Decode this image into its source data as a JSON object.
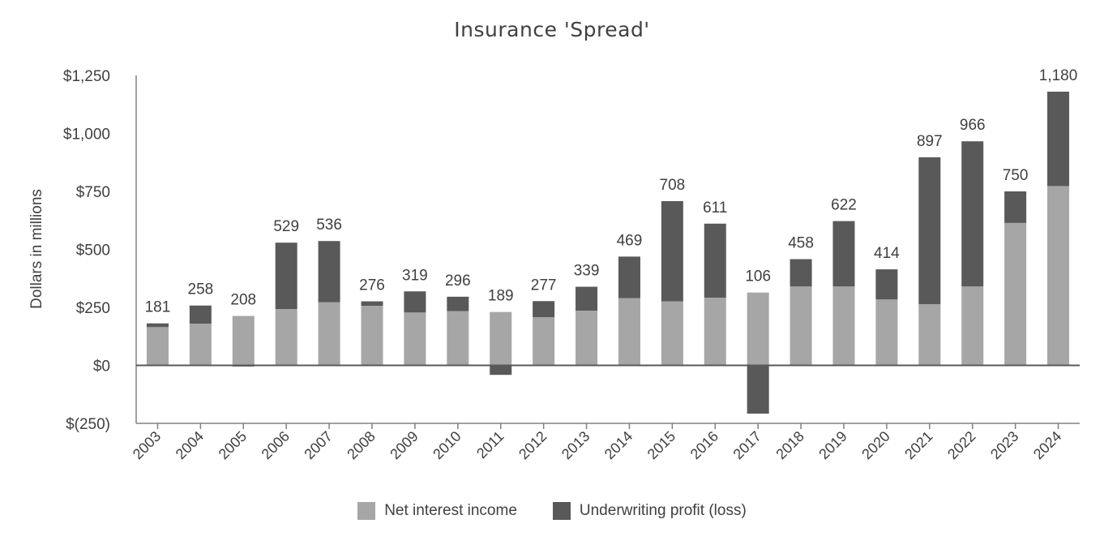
{
  "chart_data": {
    "type": "bar",
    "stacked": true,
    "title": "Insurance 'Spread'",
    "xlabel": "",
    "ylabel": "Dollars in millions",
    "ylim": [
      -250,
      1250
    ],
    "yticks": [
      -250,
      0,
      250,
      500,
      750,
      1000,
      1250
    ],
    "ytick_labels": [
      "$(250)",
      "$0",
      "$250",
      "$500",
      "$750",
      "$1,000",
      "$1,250"
    ],
    "grid": false,
    "legend_position": "bottom",
    "categories": [
      "2003",
      "2004",
      "2005",
      "2006",
      "2007",
      "2008",
      "2009",
      "2010",
      "2011",
      "2012",
      "2013",
      "2014",
      "2015",
      "2016",
      "2017",
      "2018",
      "2019",
      "2020",
      "2021",
      "2022",
      "2023",
      "2024"
    ],
    "series": [
      {
        "name": "Net interest income",
        "color": "#a6a6a6",
        "values": [
          165,
          180,
          213,
          243,
          272,
          257,
          228,
          234,
          230,
          208,
          236,
          290,
          276,
          292,
          314,
          340,
          340,
          284,
          264,
          340,
          614,
          773
        ]
      },
      {
        "name": "Underwriting profit (loss)",
        "color": "#595959",
        "values": [
          16,
          78,
          -5,
          286,
          264,
          19,
          91,
          62,
          -41,
          69,
          103,
          179,
          432,
          319,
          -208,
          118,
          282,
          130,
          633,
          626,
          136,
          407
        ]
      }
    ],
    "totals": [
      181,
      258,
      208,
      529,
      536,
      276,
      319,
      296,
      189,
      277,
      339,
      469,
      708,
      611,
      106,
      458,
      622,
      414,
      897,
      966,
      750,
      1180
    ],
    "total_labels": [
      "181",
      "258",
      "208",
      "529",
      "536",
      "276",
      "319",
      "296",
      "189",
      "277",
      "339",
      "469",
      "708",
      "611",
      "106",
      "458",
      "622",
      "414",
      "897",
      "966",
      "750",
      "1,180"
    ],
    "axis_color": "#808080",
    "zero_line_color": "#595959"
  }
}
